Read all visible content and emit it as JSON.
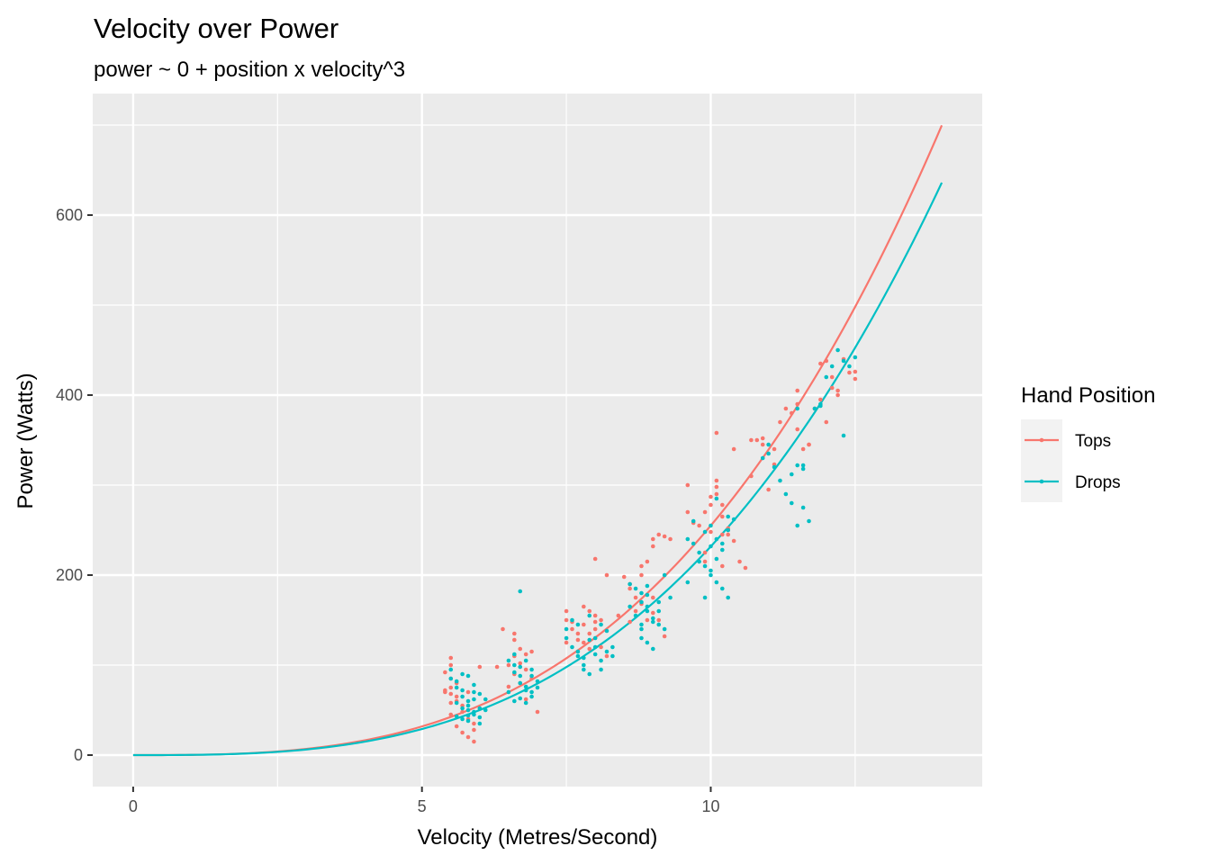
{
  "chart_data": {
    "type": "scatter",
    "title": "Velocity over Power",
    "subtitle": "power ~ 0 + position x velocity^3",
    "xlabel": "Velocity (Metres/Second)",
    "ylabel": "Power (Watts)",
    "xlim": [
      -0.7,
      14.7
    ],
    "ylim": [
      -35,
      735
    ],
    "x_ticks": [
      0,
      5,
      10
    ],
    "x_tick_labels": [
      "0",
      "5",
      "10"
    ],
    "y_ticks": [
      0,
      200,
      400,
      600
    ],
    "y_tick_labels": [
      "0",
      "200",
      "400",
      "600"
    ],
    "grid": true,
    "legend": {
      "title": "Hand Position",
      "position": "right"
    },
    "series": [
      {
        "name": "Tops",
        "color": "#F8766D",
        "fit_coefficient": 0.255,
        "fit_range": [
          0,
          14
        ],
        "points": [
          [
            5.4,
            92
          ],
          [
            5.5,
            75
          ],
          [
            5.5,
            100
          ],
          [
            5.5,
            108
          ],
          [
            5.5,
            68
          ],
          [
            5.6,
            60
          ],
          [
            5.5,
            45
          ],
          [
            5.6,
            32
          ],
          [
            5.5,
            85
          ],
          [
            5.4,
            72
          ],
          [
            5.6,
            80
          ],
          [
            5.7,
            55
          ],
          [
            5.8,
            40
          ],
          [
            5.9,
            28
          ],
          [
            5.8,
            20
          ],
          [
            5.9,
            15
          ],
          [
            5.7,
            48
          ],
          [
            5.6,
            65
          ],
          [
            5.5,
            58
          ],
          [
            6.0,
            98
          ],
          [
            5.8,
            70
          ],
          [
            5.9,
            35
          ],
          [
            5.7,
            25
          ],
          [
            5.4,
            70
          ],
          [
            6.4,
            140
          ],
          [
            6.6,
            135
          ],
          [
            6.6,
            128
          ],
          [
            6.7,
            118
          ],
          [
            6.5,
            100
          ],
          [
            6.6,
            90
          ],
          [
            6.7,
            80
          ],
          [
            6.8,
            112
          ],
          [
            6.9,
            115
          ],
          [
            6.8,
            95
          ],
          [
            6.7,
            102
          ],
          [
            6.9,
            85
          ],
          [
            7.0,
            48
          ],
          [
            6.8,
            62
          ],
          [
            6.6,
            110
          ],
          [
            6.5,
            76
          ],
          [
            6.3,
            98
          ],
          [
            7.5,
            160
          ],
          [
            7.5,
            150
          ],
          [
            7.6,
            140
          ],
          [
            7.7,
            135
          ],
          [
            7.8,
            165
          ],
          [
            7.8,
            145
          ],
          [
            7.9,
            160
          ],
          [
            8.0,
            155
          ],
          [
            7.8,
            125
          ],
          [
            7.9,
            118
          ],
          [
            8.1,
            120
          ],
          [
            8.2,
            110
          ],
          [
            8.1,
            150
          ],
          [
            8.0,
            148
          ],
          [
            7.7,
            128
          ],
          [
            7.5,
            125
          ],
          [
            8.4,
            155
          ],
          [
            8.6,
            148
          ],
          [
            8.0,
            140
          ],
          [
            8.2,
            200
          ],
          [
            8.0,
            218
          ],
          [
            7.6,
            148
          ],
          [
            7.9,
            135
          ],
          [
            8.5,
            198
          ],
          [
            8.6,
            190
          ],
          [
            8.7,
            175
          ],
          [
            8.8,
            168
          ],
          [
            8.8,
            210
          ],
          [
            8.9,
            215
          ],
          [
            9.0,
            232
          ],
          [
            9.0,
            240
          ],
          [
            9.1,
            245
          ],
          [
            9.2,
            243
          ],
          [
            9.3,
            240
          ],
          [
            8.6,
            185
          ],
          [
            8.7,
            160
          ],
          [
            8.9,
            150
          ],
          [
            9.0,
            158
          ],
          [
            9.1,
            150
          ],
          [
            9.0,
            175
          ],
          [
            9.2,
            132
          ],
          [
            8.8,
            200
          ],
          [
            9.6,
            300
          ],
          [
            9.7,
            258
          ],
          [
            9.8,
            255
          ],
          [
            9.9,
            270
          ],
          [
            10.0,
            278
          ],
          [
            10.0,
            287
          ],
          [
            10.1,
            290
          ],
          [
            10.1,
            298
          ],
          [
            10.1,
            305
          ],
          [
            10.2,
            265
          ],
          [
            10.2,
            278
          ],
          [
            10.2,
            245
          ],
          [
            10.3,
            252
          ],
          [
            10.3,
            250
          ],
          [
            10.4,
            340
          ],
          [
            10.0,
            248
          ],
          [
            9.9,
            225
          ],
          [
            10.2,
            210
          ],
          [
            10.5,
            215
          ],
          [
            10.6,
            208
          ],
          [
            10.1,
            358
          ],
          [
            9.6,
            270
          ],
          [
            10.3,
            245
          ],
          [
            10.4,
            238
          ],
          [
            9.9,
            215
          ],
          [
            10.7,
            310
          ],
          [
            10.7,
            350
          ],
          [
            10.8,
            350
          ],
          [
            10.9,
            352
          ],
          [
            10.9,
            345
          ],
          [
            11.0,
            295
          ],
          [
            11.1,
            340
          ],
          [
            11.2,
            370
          ],
          [
            11.3,
            385
          ],
          [
            11.4,
            380
          ],
          [
            11.5,
            405
          ],
          [
            11.5,
            362
          ],
          [
            11.6,
            340
          ],
          [
            11.7,
            345
          ],
          [
            11.8,
            385
          ],
          [
            11.9,
            395
          ],
          [
            11.9,
            435
          ],
          [
            12.0,
            370
          ],
          [
            12.1,
            420
          ],
          [
            12.1,
            408
          ],
          [
            12.2,
            400
          ],
          [
            12.4,
            425
          ],
          [
            12.5,
            418
          ],
          [
            12.3,
            440
          ],
          [
            11.1,
            323
          ],
          [
            11.5,
            390
          ],
          [
            12.2,
            405
          ],
          [
            12.5,
            426
          ],
          [
            12.0,
            438
          ],
          [
            11.7,
            345
          ]
        ]
      },
      {
        "name": "Drops",
        "color": "#00BFC4",
        "fit_coefficient": 0.2318,
        "fit_range": [
          0,
          14
        ],
        "points": [
          [
            5.5,
            95
          ],
          [
            5.5,
            85
          ],
          [
            5.6,
            82
          ],
          [
            5.6,
            75
          ],
          [
            5.7,
            72
          ],
          [
            5.7,
            65
          ],
          [
            5.8,
            60
          ],
          [
            5.8,
            55
          ],
          [
            5.8,
            50
          ],
          [
            5.9,
            48
          ],
          [
            5.9,
            45
          ],
          [
            6.0,
            42
          ],
          [
            6.0,
            52
          ],
          [
            6.1,
            50
          ],
          [
            5.7,
            90
          ],
          [
            5.8,
            88
          ],
          [
            5.9,
            78
          ],
          [
            5.6,
            58
          ],
          [
            5.7,
            40
          ],
          [
            5.8,
            38
          ],
          [
            6.0,
            68
          ],
          [
            6.1,
            62
          ],
          [
            5.9,
            70
          ],
          [
            5.7,
            52
          ],
          [
            5.8,
            44
          ],
          [
            6.0,
            35
          ],
          [
            5.9,
            62
          ],
          [
            5.6,
            43
          ],
          [
            6.5,
            105
          ],
          [
            6.6,
            100
          ],
          [
            6.6,
            92
          ],
          [
            6.7,
            88
          ],
          [
            6.7,
            80
          ],
          [
            6.8,
            76
          ],
          [
            6.8,
            72
          ],
          [
            6.9,
            70
          ],
          [
            6.9,
            65
          ],
          [
            7.0,
            75
          ],
          [
            6.6,
            112
          ],
          [
            6.7,
            98
          ],
          [
            6.7,
            63
          ],
          [
            6.8,
            58
          ],
          [
            6.9,
            88
          ],
          [
            7.0,
            82
          ],
          [
            6.7,
            182
          ],
          [
            6.5,
            70
          ],
          [
            6.9,
            95
          ],
          [
            6.8,
            105
          ],
          [
            6.6,
            60
          ],
          [
            7.5,
            140
          ],
          [
            7.5,
            130
          ],
          [
            7.6,
            150
          ],
          [
            7.6,
            120
          ],
          [
            7.7,
            115
          ],
          [
            7.7,
            110
          ],
          [
            7.8,
            108
          ],
          [
            7.8,
            100
          ],
          [
            7.8,
            95
          ],
          [
            7.9,
            90
          ],
          [
            8.0,
            130
          ],
          [
            8.0,
            120
          ],
          [
            8.1,
            105
          ],
          [
            8.2,
            115
          ],
          [
            8.3,
            120
          ],
          [
            8.1,
            145
          ],
          [
            8.2,
            138
          ],
          [
            7.9,
            155
          ],
          [
            8.0,
            112
          ],
          [
            8.3,
            110
          ],
          [
            8.1,
            95
          ],
          [
            7.7,
            145
          ],
          [
            7.9,
            128
          ],
          [
            8.6,
            190
          ],
          [
            8.7,
            185
          ],
          [
            8.8,
            180
          ],
          [
            8.8,
            170
          ],
          [
            8.9,
            165
          ],
          [
            8.9,
            160
          ],
          [
            9.0,
            152
          ],
          [
            9.0,
            148
          ],
          [
            9.1,
            145
          ],
          [
            9.2,
            140
          ],
          [
            8.7,
            155
          ],
          [
            8.8,
            130
          ],
          [
            8.9,
            125
          ],
          [
            9.0,
            118
          ],
          [
            9.1,
            170
          ],
          [
            9.2,
            200
          ],
          [
            9.3,
            175
          ],
          [
            8.6,
            165
          ],
          [
            8.8,
            140
          ],
          [
            8.9,
            178
          ],
          [
            9.1,
            160
          ],
          [
            8.9,
            188
          ],
          [
            8.8,
            145
          ],
          [
            9.6,
            240
          ],
          [
            9.7,
            235
          ],
          [
            9.8,
            225
          ],
          [
            9.8,
            215
          ],
          [
            9.9,
            210
          ],
          [
            10.0,
            205
          ],
          [
            10.0,
            200
          ],
          [
            10.1,
            192
          ],
          [
            10.2,
            185
          ],
          [
            10.3,
            175
          ],
          [
            10.0,
            255
          ],
          [
            10.1,
            240
          ],
          [
            10.3,
            265
          ],
          [
            10.4,
            262
          ],
          [
            9.9,
            175
          ],
          [
            10.0,
            232
          ],
          [
            10.2,
            228
          ],
          [
            9.7,
            260
          ],
          [
            9.9,
            248
          ],
          [
            10.3,
            250
          ],
          [
            10.1,
            285
          ],
          [
            9.6,
            192
          ],
          [
            10.1,
            218
          ],
          [
            10.2,
            235
          ],
          [
            10.9,
            330
          ],
          [
            11.0,
            335
          ],
          [
            11.0,
            345
          ],
          [
            11.1,
            320
          ],
          [
            11.2,
            305
          ],
          [
            11.3,
            290
          ],
          [
            11.4,
            280
          ],
          [
            11.5,
            255
          ],
          [
            11.6,
            275
          ],
          [
            11.7,
            260
          ],
          [
            11.6,
            318
          ],
          [
            11.5,
            322
          ],
          [
            11.8,
            385
          ],
          [
            11.9,
            390
          ],
          [
            12.0,
            420
          ],
          [
            12.1,
            432
          ],
          [
            12.2,
            450
          ],
          [
            12.3,
            438
          ],
          [
            12.5,
            442
          ],
          [
            12.4,
            432
          ],
          [
            12.3,
            355
          ],
          [
            11.5,
            385
          ],
          [
            11.9,
            388
          ],
          [
            11.4,
            312
          ],
          [
            11.6,
            322
          ]
        ]
      }
    ]
  }
}
